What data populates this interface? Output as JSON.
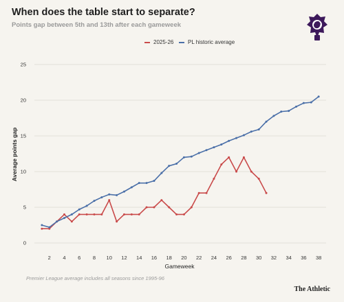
{
  "header": {
    "title": "When does the table start to separate?",
    "subtitle": "Points gap between 5th and 13th after each gameweek"
  },
  "footer": {
    "note": "Premier League average includes all seasons since 1995-96",
    "brand": "The Athletic"
  },
  "colors": {
    "series_2025": "#c94a4a",
    "series_historic": "#4a6fa8",
    "grid": "#dcd9d2",
    "logo": "#3d195b"
  },
  "chart_data": {
    "type": "line",
    "xlabel": "Gameweek",
    "ylabel": "Average points gap",
    "xlim": [
      0,
      39
    ],
    "ylim": [
      0,
      25
    ],
    "xticks": [
      2,
      4,
      6,
      8,
      10,
      12,
      14,
      16,
      18,
      20,
      22,
      24,
      26,
      28,
      30,
      32,
      34,
      36,
      38
    ],
    "yticks": [
      0,
      5,
      10,
      15,
      20,
      25
    ],
    "grid": "horizontal",
    "legend_position": "top-center",
    "series": [
      {
        "name": "2025-26",
        "color": "#c94a4a",
        "x": [
          1,
          2,
          3,
          4,
          5,
          6,
          7,
          8,
          9,
          10,
          11,
          12,
          13,
          14,
          15,
          16,
          17,
          18,
          19,
          20,
          21,
          22,
          23,
          24,
          25,
          26,
          27,
          28,
          29,
          30,
          31
        ],
        "y": [
          2,
          2,
          3,
          4,
          3,
          4,
          4,
          4,
          4,
          6,
          3,
          4,
          4,
          4,
          5,
          5,
          6,
          5,
          4,
          4,
          5,
          7,
          7,
          9,
          11,
          12,
          10,
          12,
          10,
          9,
          7
        ]
      },
      {
        "name": "PL historic average",
        "color": "#4a6fa8",
        "x": [
          1,
          2,
          3,
          4,
          5,
          6,
          7,
          8,
          9,
          10,
          11,
          12,
          13,
          14,
          15,
          16,
          17,
          18,
          19,
          20,
          21,
          22,
          23,
          24,
          25,
          26,
          27,
          28,
          29,
          30,
          31,
          32,
          33,
          34,
          35,
          36,
          37,
          38
        ],
        "y": [
          2.5,
          2.2,
          3.0,
          3.5,
          4.0,
          4.7,
          5.2,
          5.9,
          6.4,
          6.8,
          6.7,
          7.2,
          7.8,
          8.4,
          8.4,
          8.7,
          9.8,
          10.8,
          11.1,
          12.0,
          12.1,
          12.6,
          13.0,
          13.4,
          13.8,
          14.3,
          14.7,
          15.1,
          15.6,
          15.9,
          17.0,
          17.8,
          18.4,
          18.5,
          19.1,
          19.6,
          19.7,
          20.5
        ]
      }
    ]
  }
}
